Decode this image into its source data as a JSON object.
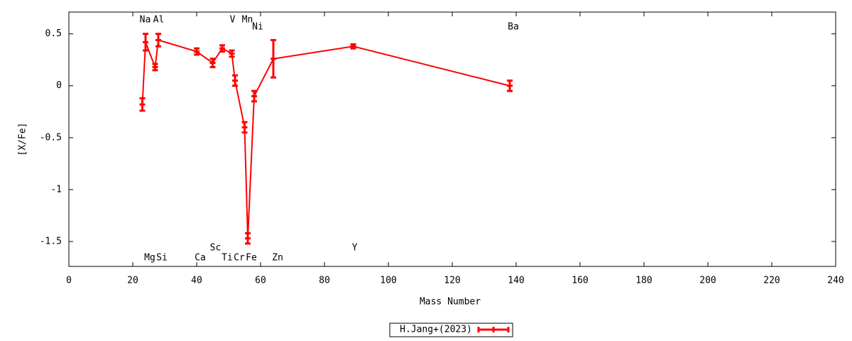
{
  "chart_data": {
    "type": "line",
    "xlabel": "Mass Number",
    "ylabel": "[X/Fe]",
    "x": [
      23,
      24,
      27,
      28,
      40,
      45,
      48,
      51,
      52,
      55,
      56,
      58,
      64,
      89,
      138
    ],
    "point_labels": [
      "Na",
      "Mg",
      "Al",
      "Si",
      "Ca",
      "Sc",
      "Ti",
      "V",
      "Cr",
      "Mn",
      "Fe",
      "Ni",
      "Zn",
      "Y",
      "Ba"
    ],
    "series": [
      {
        "name": "H.Jang+(2023)",
        "color": "#ff0000",
        "values": [
          -0.18,
          0.42,
          0.18,
          0.44,
          0.33,
          0.22,
          0.36,
          0.31,
          0.05,
          -0.4,
          -1.47,
          -0.1,
          0.26,
          0.38,
          0.0
        ],
        "errors": [
          0.06,
          0.08,
          0.03,
          0.06,
          0.03,
          0.04,
          0.03,
          0.03,
          0.05,
          0.05,
          0.05,
          0.05,
          0.18,
          0.02,
          0.05
        ]
      }
    ],
    "xlim": [
      0,
      240
    ],
    "ylim": [
      -1.74,
      0.71
    ],
    "xticks": [
      0,
      20,
      40,
      60,
      80,
      100,
      120,
      140,
      160,
      180,
      200,
      220,
      240
    ],
    "yticks": [
      0.5,
      0,
      -0.5,
      -1,
      -1.5
    ],
    "legend": "bottom"
  }
}
